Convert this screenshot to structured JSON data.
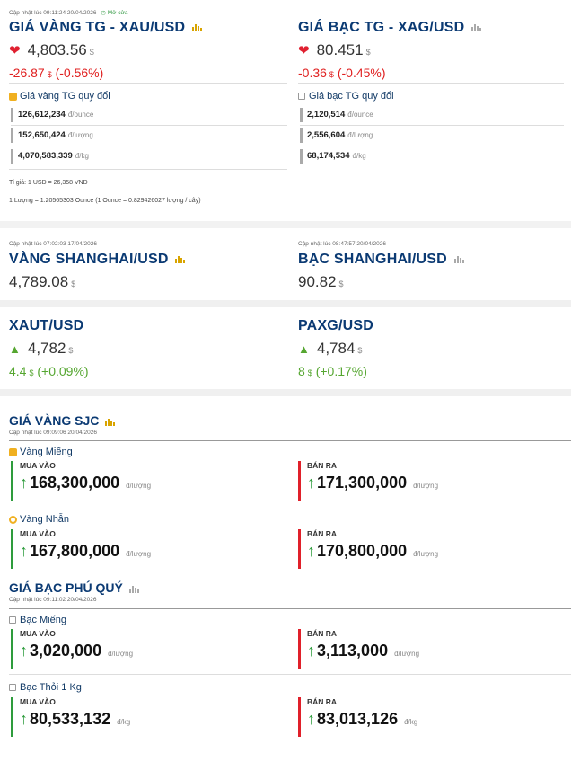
{
  "world": {
    "updated": "Cập nhật lúc 09:11:24 20/04/2026",
    "market_status": "Mở cửa",
    "gold": {
      "title": "GIÁ VÀNG TG - XAU/USD",
      "price": "4,803.56",
      "currency": "$",
      "change": "-26.87",
      "change_pct": "(-0.56%)",
      "conv_title": "Giá vàng TG quy đổi",
      "conv": [
        {
          "value": "126,612,234",
          "unit": "đ/ounce"
        },
        {
          "value": "152,650,424",
          "unit": "đ/lượng"
        },
        {
          "value": "4,070,583,339",
          "unit": "đ/kg"
        }
      ]
    },
    "silver": {
      "title": "GIÁ BẠC TG - XAG/USD",
      "price": "80.451",
      "currency": "$",
      "change": "-0.36",
      "change_pct": "(-0.45%)",
      "conv_title": "Giá bạc TG quy đổi",
      "conv": [
        {
          "value": "2,120,514",
          "unit": "đ/ounce"
        },
        {
          "value": "2,556,604",
          "unit": "đ/lượng"
        },
        {
          "value": "68,174,534",
          "unit": "đ/kg"
        }
      ]
    },
    "rate_note": "Tỉ giá: 1 USD = 26,358 VNĐ",
    "luong_note": "1 Lượng = 1.20565303 Ounce (1 Ounce = 0.829426027 lượng / cây)"
  },
  "shanghai": {
    "gold": {
      "updated": "Cập nhật lúc 07:02:03 17/04/2026",
      "title": "VÀNG SHANGHAI/USD",
      "price": "4,789.08",
      "currency": "$"
    },
    "silver": {
      "updated": "Cập nhật lúc 08:47:57 20/04/2026",
      "title": "BẠC SHANGHAI/USD",
      "price": "90.82",
      "currency": "$"
    }
  },
  "tokens": {
    "xaut": {
      "title": "XAUT/USD",
      "price": "4,782",
      "currency": "$",
      "change": "4.4",
      "change_pct": "(+0.09%)"
    },
    "paxg": {
      "title": "PAXG/USD",
      "price": "4,784",
      "currency": "$",
      "change": "8",
      "change_pct": "(+0.17%)"
    }
  },
  "sjc": {
    "title": "GIÁ VÀNG SJC",
    "updated": "Cập nhật lúc 09:09:06 20/04/2026",
    "items": [
      {
        "label": "Vàng Miếng",
        "buy_label": "MUA VÀO",
        "buy": "168,300,000",
        "buy_unit": "đ/lượng",
        "sell_label": "BÁN RA",
        "sell": "171,300,000",
        "sell_unit": "đ/lượng"
      },
      {
        "label": "Vàng Nhẫn",
        "buy_label": "MUA VÀO",
        "buy": "167,800,000",
        "buy_unit": "đ/lượng",
        "sell_label": "BÁN RA",
        "sell": "170,800,000",
        "sell_unit": "đ/lượng"
      }
    ]
  },
  "phuquy": {
    "title": "GIÁ BẠC PHÚ QUÝ",
    "updated": "Cập nhật lúc 09:11:02 20/04/2026",
    "items": [
      {
        "label": "Bạc Miếng",
        "buy_label": "MUA VÀO",
        "buy": "3,020,000",
        "buy_unit": "đ/lượng",
        "sell_label": "BÁN RA",
        "sell": "3,113,000",
        "sell_unit": "đ/lượng"
      },
      {
        "label": "Bạc Thỏi 1 Kg",
        "buy_label": "MUA VÀO",
        "buy": "80,533,132",
        "buy_unit": "đ/kg",
        "sell_label": "BÁN RA",
        "sell": "83,013,126",
        "sell_unit": "đ/kg"
      }
    ]
  },
  "colors": {
    "title": "#0b3a73",
    "down": "#e02020",
    "up": "#55a630",
    "buy_bar": "#2e9c3c",
    "sell_bar": "#e0202a"
  },
  "icons": [
    "clock-icon",
    "bar-chart-icon",
    "heart-down-icon",
    "arrow-up-triangle-icon",
    "gold-bar-icon",
    "ring-icon",
    "silver-tag-icon",
    "up-arrow-icon"
  ]
}
